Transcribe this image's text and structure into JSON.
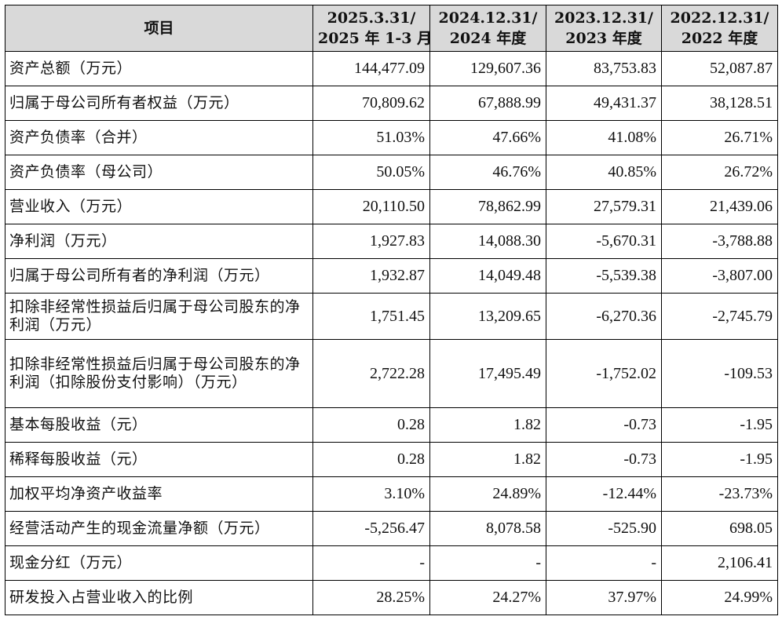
{
  "table": {
    "header": {
      "item": "项目",
      "periods": [
        {
          "date": "2025.3.31/",
          "period": "2025 年 1-3 月"
        },
        {
          "date": "2024.12.31/",
          "period": "2024 年度"
        },
        {
          "date": "2023.12.31/",
          "period": "2023 年度"
        },
        {
          "date": "2022.12.31/",
          "period": "2022 年度"
        }
      ]
    },
    "rows": [
      {
        "label": "资产总额（万元）",
        "values": [
          "144,477.09",
          "129,607.36",
          "83,753.83",
          "52,087.87"
        ]
      },
      {
        "label": "归属于母公司所有者权益（万元）",
        "values": [
          "70,809.62",
          "67,888.99",
          "49,431.37",
          "38,128.51"
        ]
      },
      {
        "label": "资产负债率（合并）",
        "values": [
          "51.03%",
          "47.66%",
          "41.08%",
          "26.71%"
        ]
      },
      {
        "label": "资产负债率（母公司）",
        "values": [
          "50.05%",
          "46.76%",
          "40.85%",
          "26.72%"
        ]
      },
      {
        "label": "营业收入（万元）",
        "values": [
          "20,110.50",
          "78,862.99",
          "27,579.31",
          "21,439.06"
        ]
      },
      {
        "label": "净利润（万元）",
        "values": [
          "1,927.83",
          "14,088.30",
          "-5,670.31",
          "-3,788.88"
        ]
      },
      {
        "label": "归属于母公司所有者的净利润（万元）",
        "values": [
          "1,932.87",
          "14,049.48",
          "-5,539.38",
          "-3,807.00"
        ]
      },
      {
        "label": "扣除非经常性损益后归属于母公司股东的净利润（万元）",
        "values": [
          "1,751.45",
          "13,209.65",
          "-6,270.36",
          "-2,745.79"
        ]
      },
      {
        "label": "扣除非经常性损益后归属于母公司股东的净利润（扣除股份支付影响）（万元）",
        "values": [
          "2,722.28",
          "17,495.49",
          "-1,752.02",
          "-109.53"
        ]
      },
      {
        "label": "基本每股收益（元）",
        "values": [
          "0.28",
          "1.82",
          "-0.73",
          "-1.95"
        ]
      },
      {
        "label": "稀释每股收益（元）",
        "values": [
          "0.28",
          "1.82",
          "-0.73",
          "-1.95"
        ]
      },
      {
        "label": "加权平均净资产收益率",
        "values": [
          "3.10%",
          "24.89%",
          "-12.44%",
          "-23.73%"
        ]
      },
      {
        "label": "经营活动产生的现金流量净额（万元）",
        "values": [
          "-5,256.47",
          "8,078.58",
          "-525.90",
          "698.05"
        ]
      },
      {
        "label": "现金分红（万元）",
        "values": [
          "-",
          "-",
          "-",
          "2,106.41"
        ]
      },
      {
        "label": "研发投入占营业收入的比例",
        "values": [
          "28.25%",
          "24.27%",
          "37.97%",
          "24.99%"
        ]
      }
    ]
  }
}
